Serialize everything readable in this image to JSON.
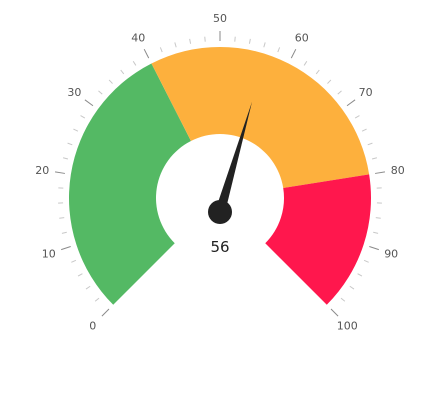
{
  "chart_data": {
    "type": "gauge",
    "min": 0,
    "max": 100,
    "value": 56,
    "value_label": "56",
    "major_ticks": [
      {
        "value": 0,
        "label": "0"
      },
      {
        "value": 10,
        "label": "10"
      },
      {
        "value": 20,
        "label": "20"
      },
      {
        "value": 30,
        "label": "30"
      },
      {
        "value": 40,
        "label": "40"
      },
      {
        "value": 50,
        "label": "50"
      },
      {
        "value": 60,
        "label": "60"
      },
      {
        "value": 70,
        "label": "70"
      },
      {
        "value": 80,
        "label": "80"
      },
      {
        "value": 90,
        "label": "90"
      },
      {
        "value": 100,
        "label": "100"
      }
    ],
    "minor_tick_step": 2,
    "bands": [
      {
        "from": 0,
        "to": 40,
        "color": "#54b964"
      },
      {
        "from": 40,
        "to": 80,
        "color": "#fdb03d"
      },
      {
        "from": 80,
        "to": 100,
        "color": "#ff174d"
      }
    ],
    "needle_color": "#222222"
  }
}
